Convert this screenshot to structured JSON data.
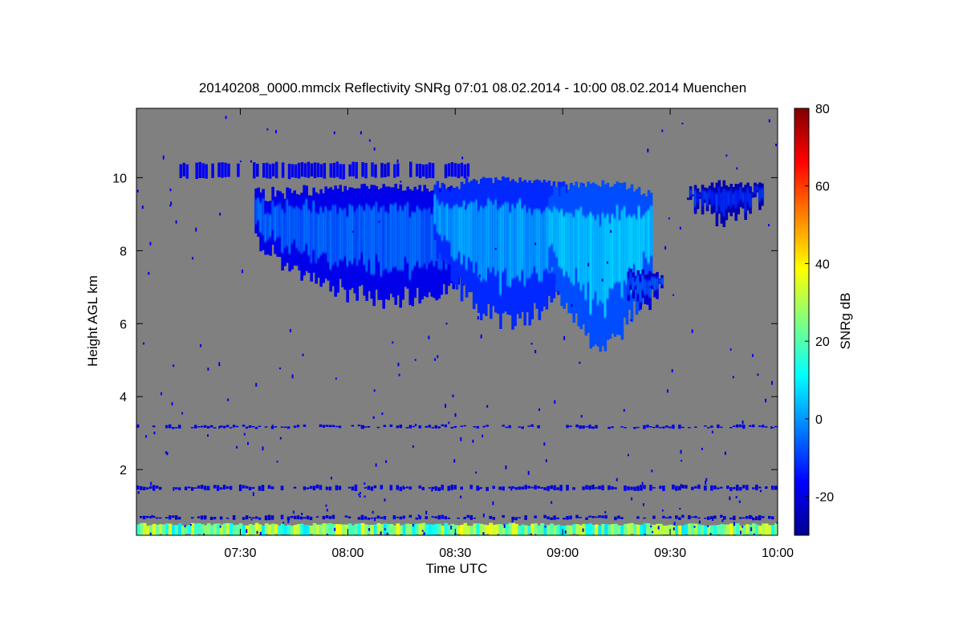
{
  "chart_data": {
    "type": "heatmap",
    "title": "20140208_0000.mmclx Reflectivity SNRg   07:01 08.02.2014 - 10:00 08.02.2014 Muenchen",
    "xlabel": "Time UTC",
    "ylabel": "Height AGL km",
    "colorbar_label": "SNRg dB",
    "x_range_minutes": [
      421,
      600
    ],
    "y_range_km": [
      0.2,
      11.9
    ],
    "x_ticks": [
      {
        "minute": 450,
        "label": "07:30"
      },
      {
        "minute": 480,
        "label": "08:00"
      },
      {
        "minute": 510,
        "label": "08:30"
      },
      {
        "minute": 540,
        "label": "09:00"
      },
      {
        "minute": 570,
        "label": "09:30"
      },
      {
        "minute": 600,
        "label": "10:00"
      }
    ],
    "y_ticks": [
      {
        "value": 2,
        "label": "2"
      },
      {
        "value": 4,
        "label": "4"
      },
      {
        "value": 6,
        "label": "6"
      },
      {
        "value": 8,
        "label": "8"
      },
      {
        "value": 10,
        "label": "10"
      }
    ],
    "colorbar_range_db": [
      -30,
      80
    ],
    "colorbar_ticks": [
      {
        "value": -20,
        "label": "-20"
      },
      {
        "value": 0,
        "label": "0"
      },
      {
        "value": 20,
        "label": "20"
      },
      {
        "value": 40,
        "label": "40"
      },
      {
        "value": 60,
        "label": "60"
      },
      {
        "value": 80,
        "label": "80"
      }
    ],
    "background_color": "#808080",
    "colormap": [
      "#00008f",
      "#0000ff",
      "#0080ff",
      "#00ffff",
      "#80ff80",
      "#ffff00",
      "#ff8000",
      "#ff0000",
      "#800000"
    ],
    "features": [
      {
        "name": "main cirrus cloud",
        "t_start": 454,
        "t_end": 530,
        "base_km": 6.4,
        "top_km": 9.9,
        "snr_db": -5
      },
      {
        "name": "main cirrus cloud",
        "t_start": 504,
        "t_end": 546,
        "base_km": 5.8,
        "top_km": 10.1,
        "snr_db": 2
      },
      {
        "name": "main cirrus core",
        "t_start": 536,
        "t_end": 565,
        "base_km": 5.2,
        "top_km": 10.0,
        "snr_db": 6
      },
      {
        "name": "trailing cirrus",
        "t_start": 556,
        "t_end": 568,
        "base_km": 6.3,
        "top_km": 7.6,
        "snr_db": -8
      },
      {
        "name": "upper cirrus patch",
        "t_start": 574,
        "t_end": 596,
        "base_km": 8.6,
        "top_km": 10.0,
        "snr_db": -12
      },
      {
        "name": "thin layer",
        "t_start": 433,
        "t_end": 515,
        "base_km": 10.0,
        "top_km": 10.4,
        "snr_db": -18
      },
      {
        "name": "clutter line",
        "t_start": 421,
        "t_end": 600,
        "base_km": 3.15,
        "top_km": 3.2,
        "snr_db": -20
      },
      {
        "name": "clutter line",
        "t_start": 421,
        "t_end": 600,
        "base_km": 1.45,
        "top_km": 1.55,
        "snr_db": -20
      },
      {
        "name": "clutter line",
        "t_start": 421,
        "t_end": 600,
        "base_km": 0.65,
        "top_km": 0.72,
        "snr_db": -22
      },
      {
        "name": "near-ground returns",
        "t_start": 421,
        "t_end": 600,
        "base_km": 0.2,
        "top_km": 0.5,
        "snr_db": 20
      }
    ]
  }
}
